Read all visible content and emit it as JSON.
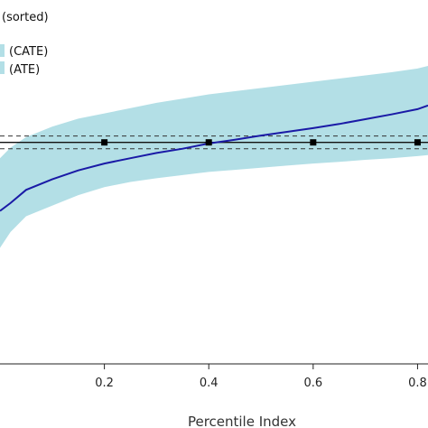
{
  "chart_data": {
    "type": "line",
    "xlabel": "Percentile Index",
    "ylabel": "",
    "xlim": [
      0,
      0.82
    ],
    "ylim": [
      -0.37,
      0.32
    ],
    "x_ticks": [
      {
        "value": 0.2,
        "label": "0.2"
      },
      {
        "value": 0.4,
        "label": "0.4"
      },
      {
        "value": 0.6,
        "label": "0.6"
      },
      {
        "value": 0.8,
        "label": "0.8"
      }
    ],
    "legend": {
      "position": "top-left",
      "entries": [
        {
          "label": "(sorted)",
          "kind": "line",
          "color": "#1a1aa6"
        },
        {
          "label": "(CATE)",
          "kind": "band",
          "color": "#b3dfe6"
        },
        {
          "label": "(ATE)",
          "kind": "band",
          "color": "#b3dfe6"
        }
      ]
    },
    "series": [
      {
        "type": "line",
        "color": "#1a1aa6",
        "x": [
          0.0,
          0.02,
          0.05,
          0.1,
          0.15,
          0.2,
          0.25,
          0.3,
          0.35,
          0.4,
          0.45,
          0.5,
          0.55,
          0.6,
          0.65,
          0.7,
          0.75,
          0.8,
          0.82
        ],
        "y": [
          -0.08,
          -0.065,
          -0.04,
          -0.02,
          -0.003,
          0.01,
          0.02,
          0.03,
          0.038,
          0.048,
          0.055,
          0.063,
          0.07,
          0.077,
          0.085,
          0.094,
          0.103,
          0.113,
          0.12
        ]
      },
      {
        "type": "band",
        "color": "#b3dfe6",
        "x": [
          0.0,
          0.02,
          0.05,
          0.1,
          0.15,
          0.2,
          0.25,
          0.3,
          0.35,
          0.4,
          0.45,
          0.5,
          0.55,
          0.6,
          0.65,
          0.7,
          0.75,
          0.8,
          0.82
        ],
        "lower": [
          -0.15,
          -0.12,
          -0.09,
          -0.07,
          -0.05,
          -0.035,
          -0.025,
          -0.018,
          -0.012,
          -0.006,
          -0.002,
          0.002,
          0.006,
          0.01,
          0.013,
          0.017,
          0.02,
          0.024,
          0.026
        ],
        "upper": [
          0.02,
          0.04,
          0.06,
          0.08,
          0.095,
          0.105,
          0.115,
          0.125,
          0.133,
          0.141,
          0.147,
          0.153,
          0.159,
          0.165,
          0.171,
          0.177,
          0.183,
          0.19,
          0.195
        ]
      },
      {
        "type": "hline",
        "color": "#111111",
        "y": 0.05,
        "markers_x": [
          0.2,
          0.4,
          0.6,
          0.8
        ]
      },
      {
        "type": "hline-dashed",
        "color": "#333333",
        "y": 0.062
      },
      {
        "type": "hline-dashed",
        "color": "#333333",
        "y": 0.038
      }
    ]
  }
}
